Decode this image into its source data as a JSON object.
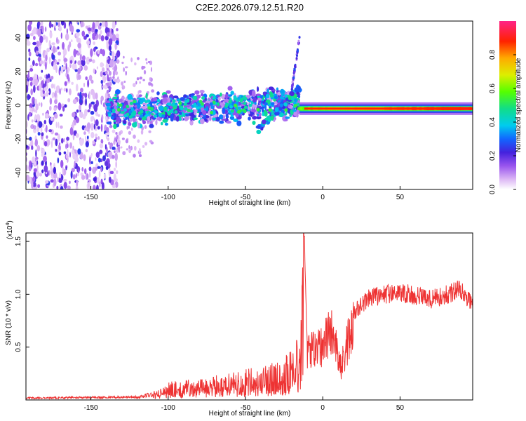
{
  "title": "C2E2.2026.079.12.51.R20",
  "chart_data": [
    {
      "type": "heatmap",
      "xlabel": "Height of straight line (km)",
      "ylabel": "Frequency (Hz)",
      "xlim": [
        -192,
        97
      ],
      "ylim": [
        -50,
        50
      ],
      "xticks": [
        -150,
        -100,
        -50,
        0,
        50
      ],
      "yticks": [
        -40,
        -20,
        0,
        20,
        40
      ],
      "colorbar": {
        "label": "Normalized spectral amplitude",
        "range": [
          0,
          1
        ],
        "ticks": [
          "0.0",
          "0.2",
          "0.4",
          "0.6",
          "0.8"
        ],
        "tick_values": [
          0.0,
          0.2,
          0.4,
          0.6,
          0.8
        ]
      },
      "features": {
        "noise_region_x": [
          -192,
          -140
        ],
        "main_band_x": [
          -140,
          -15
        ],
        "main_band_center_hz": [
          -5,
          5
        ],
        "descending_streak": {
          "x": [
            -42,
            -15
          ],
          "freq": [
            -15,
            10
          ]
        },
        "upward_streak": {
          "x": [
            -20,
            -15
          ],
          "freq": [
            10,
            40
          ]
        },
        "narrow_line_x": [
          -15,
          97
        ],
        "narrow_line_freq_hz": -2
      }
    },
    {
      "type": "line",
      "xlabel": "Height of straight line (km)",
      "ylabel": "SNR (10 * v/v)",
      "multiplier": "(x10",
      "multiplier_exp": "4",
      "multiplier_close": ")",
      "xlim": [
        -192,
        97
      ],
      "ylim": [
        0,
        1.58
      ],
      "xticks": [
        -150,
        -100,
        -50,
        0,
        50
      ],
      "yticks": [
        0.5,
        1.0,
        1.5
      ],
      "ytick_labels": [
        "0.5",
        "1.0",
        "1.5"
      ],
      "color": "#ee3333",
      "series_envelope": [
        {
          "x": -192,
          "y": 0.02
        },
        {
          "x": -120,
          "y": 0.03
        },
        {
          "x": -110,
          "y": 0.06
        },
        {
          "x": -100,
          "y": 0.12
        },
        {
          "x": -80,
          "y": 0.14
        },
        {
          "x": -60,
          "y": 0.18
        },
        {
          "x": -40,
          "y": 0.22
        },
        {
          "x": -25,
          "y": 0.28
        },
        {
          "x": -15,
          "y": 0.42
        },
        {
          "x": -12,
          "y": 1.55
        },
        {
          "x": -10,
          "y": 0.5
        },
        {
          "x": 0,
          "y": 0.55
        },
        {
          "x": 5,
          "y": 0.75
        },
        {
          "x": 12,
          "y": 0.35
        },
        {
          "x": 20,
          "y": 0.85
        },
        {
          "x": 30,
          "y": 1.0
        },
        {
          "x": 50,
          "y": 1.05
        },
        {
          "x": 70,
          "y": 0.98
        },
        {
          "x": 90,
          "y": 1.08
        },
        {
          "x": 97,
          "y": 0.93
        }
      ]
    }
  ]
}
